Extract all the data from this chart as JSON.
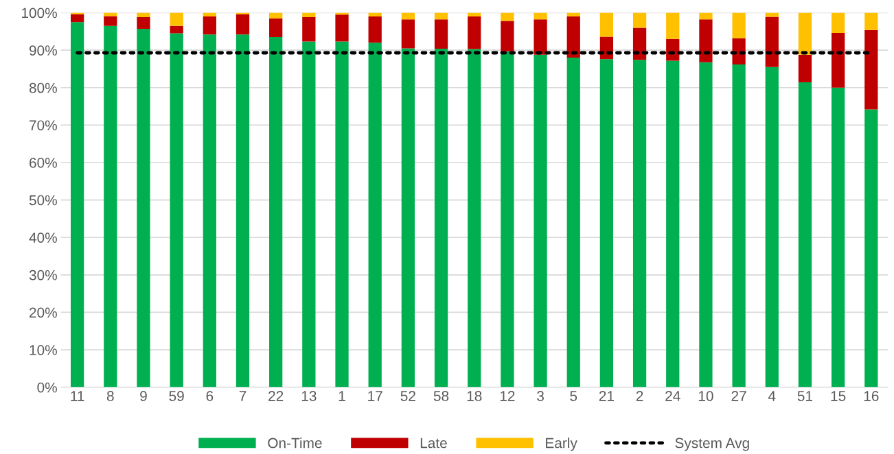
{
  "chart_data": {
    "type": "bar",
    "stacked": true,
    "categories": [
      "11",
      "8",
      "9",
      "59",
      "6",
      "7",
      "22",
      "13",
      "1",
      "17",
      "52",
      "58",
      "18",
      "12",
      "3",
      "5",
      "21",
      "2",
      "24",
      "10",
      "27",
      "4",
      "51",
      "15",
      "16"
    ],
    "series": [
      {
        "name": "On-Time",
        "color": "#00b050",
        "values": [
          97.5,
          96.5,
          95.7,
          94.5,
          94.2,
          94.2,
          93.5,
          92.3,
          92.3,
          92.0,
          90.5,
          90.4,
          90.3,
          89.7,
          88.8,
          88.0,
          87.6,
          87.4,
          87.2,
          86.8,
          86.2,
          85.5,
          81.4,
          80.0,
          74.2
        ]
      },
      {
        "name": "Late",
        "color": "#c00000",
        "values": [
          2.1,
          2.6,
          3.1,
          2.0,
          4.8,
          5.4,
          5.0,
          6.5,
          7.2,
          7.0,
          7.7,
          7.8,
          8.7,
          8.1,
          9.4,
          11.0,
          6.0,
          8.6,
          5.8,
          11.4,
          7.0,
          13.4,
          7.4,
          14.6,
          21.2
        ]
      },
      {
        "name": "Early",
        "color": "#ffc000",
        "values": [
          0.4,
          0.9,
          1.2,
          3.5,
          1.0,
          0.4,
          1.5,
          1.2,
          0.5,
          1.0,
          1.8,
          1.8,
          1.0,
          2.2,
          1.8,
          1.0,
          6.4,
          4.0,
          7.0,
          1.8,
          6.8,
          1.1,
          11.2,
          5.4,
          4.6
        ]
      },
      {
        "name": "System Avg",
        "type": "line",
        "color": "#000000",
        "line_style": "dotted",
        "marker": "none",
        "values": [
          89.3,
          89.3,
          89.3,
          89.3,
          89.3,
          89.3,
          89.3,
          89.3,
          89.3,
          89.3,
          89.3,
          89.3,
          89.3,
          89.3,
          89.3,
          89.3,
          89.3,
          89.3,
          89.3,
          89.3,
          89.3,
          89.3,
          89.3,
          89.3,
          89.3
        ]
      }
    ],
    "ylim": [
      0,
      100
    ],
    "yticks": [
      {
        "value": 0,
        "label": "0%"
      },
      {
        "value": 10,
        "label": "10%"
      },
      {
        "value": 20,
        "label": "20%"
      },
      {
        "value": 30,
        "label": "30%"
      },
      {
        "value": 40,
        "label": "40%"
      },
      {
        "value": 50,
        "label": "50%"
      },
      {
        "value": 60,
        "label": "60%"
      },
      {
        "value": 70,
        "label": "70%"
      },
      {
        "value": 80,
        "label": "80%"
      },
      {
        "value": 90,
        "label": "90%"
      },
      {
        "value": 100,
        "label": "100%"
      }
    ],
    "grid": "y",
    "legend": "bottom"
  }
}
